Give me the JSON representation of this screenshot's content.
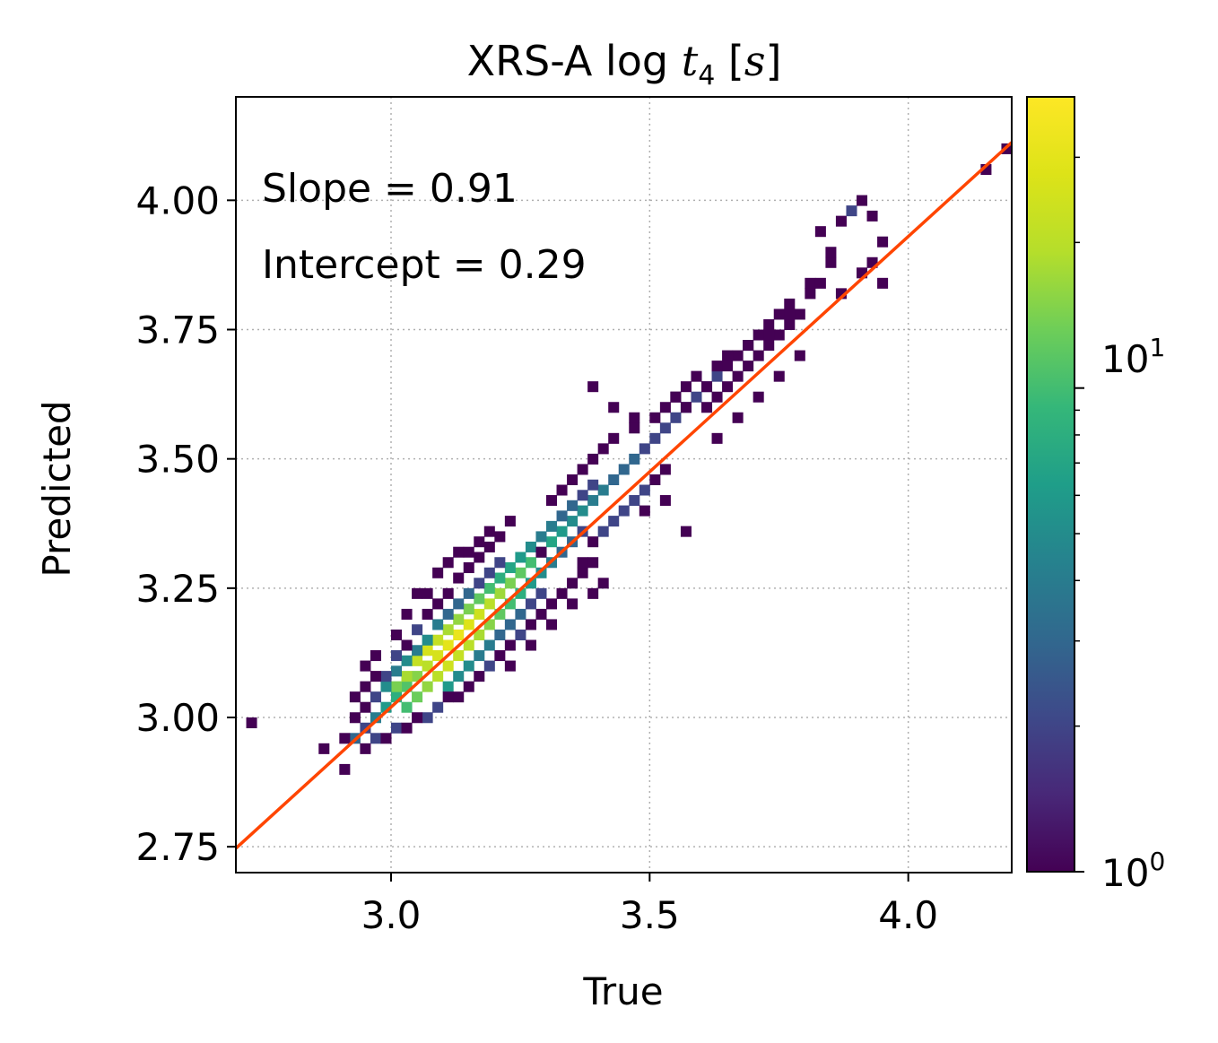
{
  "chart_data": {
    "type": "heatmap",
    "title": {
      "prefix": "XRS-A log ",
      "var": "t",
      "sub": "4",
      "unit_open": " [",
      "unit": "s",
      "unit_close": "]"
    },
    "xlabel": "True",
    "ylabel": "Predicted",
    "xlim": [
      2.7,
      4.2
    ],
    "ylim": [
      2.7,
      4.2
    ],
    "xticks": [
      3.0,
      3.5,
      4.0
    ],
    "xtick_labels": [
      "3.0",
      "3.5",
      "4.0"
    ],
    "yticks": [
      2.75,
      3.0,
      3.25,
      3.5,
      3.75,
      4.0
    ],
    "ytick_labels": [
      "2.75",
      "3.00",
      "3.25",
      "3.50",
      "3.75",
      "4.00"
    ],
    "grid": true,
    "annotations": [
      "Slope = 0.91",
      "Intercept = 0.29"
    ],
    "fit_line": {
      "slope": 0.91,
      "intercept": 0.29,
      "color": "#ff4500"
    },
    "colorbar": {
      "scale": "log",
      "colormap": "viridis",
      "range": [
        1,
        40
      ],
      "tick_labels": [
        {
          "base": "10",
          "exp": "0",
          "value": 1
        },
        {
          "base": "10",
          "exp": "1",
          "value": 10
        }
      ]
    },
    "bin_width": 0.02,
    "cells": [
      [
        2.72,
        2.98,
        1
      ],
      [
        2.86,
        2.93,
        1
      ],
      [
        2.9,
        2.89,
        1
      ],
      [
        2.92,
        2.95,
        3
      ],
      [
        2.94,
        2.97,
        2
      ],
      [
        2.96,
        2.99,
        4
      ],
      [
        2.98,
        3.01,
        6
      ],
      [
        3.0,
        3.03,
        8
      ],
      [
        3.02,
        3.05,
        11
      ],
      [
        3.04,
        3.07,
        15
      ],
      [
        3.06,
        3.09,
        20
      ],
      [
        3.08,
        3.11,
        26
      ],
      [
        3.1,
        3.13,
        30
      ],
      [
        3.12,
        3.15,
        32
      ],
      [
        3.14,
        3.17,
        28
      ],
      [
        3.16,
        3.19,
        24
      ],
      [
        3.18,
        3.21,
        20
      ],
      [
        3.2,
        3.23,
        17
      ],
      [
        3.22,
        3.25,
        14
      ],
      [
        3.24,
        3.27,
        12
      ],
      [
        3.26,
        3.29,
        10
      ],
      [
        3.28,
        3.31,
        8
      ],
      [
        3.3,
        3.33,
        7
      ],
      [
        3.32,
        3.35,
        6
      ],
      [
        3.34,
        3.37,
        5
      ],
      [
        3.36,
        3.39,
        5
      ],
      [
        3.38,
        3.41,
        4
      ],
      [
        3.4,
        3.43,
        4
      ],
      [
        3.42,
        3.45,
        3
      ],
      [
        3.44,
        3.47,
        3
      ],
      [
        3.46,
        3.49,
        3
      ],
      [
        3.48,
        3.51,
        2
      ],
      [
        3.5,
        3.53,
        2
      ],
      [
        3.52,
        3.55,
        2
      ],
      [
        3.54,
        3.57,
        2
      ],
      [
        3.56,
        3.59,
        2
      ],
      [
        3.58,
        3.61,
        2
      ],
      [
        3.6,
        3.63,
        2
      ],
      [
        3.62,
        3.65,
        2
      ],
      [
        3.64,
        3.67,
        1
      ],
      [
        3.66,
        3.69,
        1
      ],
      [
        3.68,
        3.71,
        1
      ],
      [
        3.7,
        3.73,
        1
      ],
      [
        3.72,
        3.75,
        1
      ],
      [
        3.74,
        3.77,
        1
      ],
      [
        3.76,
        3.79,
        1
      ],
      [
        3.8,
        3.83,
        1
      ],
      [
        3.84,
        3.87,
        1
      ],
      [
        3.0,
        3.05,
        14
      ],
      [
        3.02,
        3.07,
        18
      ],
      [
        3.04,
        3.1,
        22
      ],
      [
        3.06,
        3.12,
        26
      ],
      [
        3.08,
        3.14,
        22
      ],
      [
        3.1,
        3.16,
        18
      ],
      [
        3.12,
        3.18,
        16
      ],
      [
        3.14,
        3.2,
        14
      ],
      [
        3.16,
        3.22,
        12
      ],
      [
        3.18,
        3.24,
        10
      ],
      [
        3.2,
        3.26,
        8
      ],
      [
        3.22,
        3.28,
        7
      ],
      [
        3.24,
        3.3,
        6
      ],
      [
        3.26,
        3.32,
        5
      ],
      [
        3.28,
        3.34,
        4
      ],
      [
        3.3,
        3.36,
        4
      ],
      [
        3.32,
        3.38,
        3
      ],
      [
        3.34,
        3.4,
        3
      ],
      [
        3.36,
        3.42,
        2
      ],
      [
        3.38,
        3.44,
        2
      ],
      [
        3.02,
        3.01,
        10
      ],
      [
        3.04,
        3.03,
        13
      ],
      [
        3.06,
        3.05,
        16
      ],
      [
        3.08,
        3.07,
        20
      ],
      [
        3.1,
        3.09,
        24
      ],
      [
        3.12,
        3.11,
        22
      ],
      [
        3.14,
        3.13,
        20
      ],
      [
        3.16,
        3.15,
        18
      ],
      [
        3.18,
        3.17,
        15
      ],
      [
        3.2,
        3.19,
        12
      ],
      [
        3.22,
        3.21,
        10
      ],
      [
        3.24,
        3.23,
        8
      ],
      [
        3.26,
        3.25,
        6
      ],
      [
        3.28,
        3.27,
        5
      ],
      [
        3.3,
        3.29,
        4
      ],
      [
        3.32,
        3.31,
        3
      ],
      [
        3.34,
        3.33,
        3
      ],
      [
        3.36,
        3.35,
        2
      ],
      [
        2.98,
        3.05,
        5
      ],
      [
        3.0,
        3.08,
        4
      ],
      [
        3.02,
        3.1,
        5
      ],
      [
        3.04,
        3.12,
        4
      ],
      [
        3.06,
        3.14,
        5
      ],
      [
        3.08,
        3.17,
        4
      ],
      [
        3.1,
        3.19,
        3
      ],
      [
        3.12,
        3.21,
        3
      ],
      [
        3.14,
        3.23,
        3
      ],
      [
        3.16,
        3.25,
        2
      ],
      [
        3.18,
        3.27,
        2
      ],
      [
        3.2,
        3.29,
        2
      ],
      [
        3.1,
        3.05,
        6
      ],
      [
        3.12,
        3.07,
        5
      ],
      [
        3.14,
        3.09,
        5
      ],
      [
        3.16,
        3.11,
        4
      ],
      [
        3.18,
        3.13,
        4
      ],
      [
        3.2,
        3.15,
        3
      ],
      [
        3.22,
        3.17,
        3
      ],
      [
        3.24,
        3.19,
        3
      ],
      [
        3.26,
        3.21,
        2
      ],
      [
        3.28,
        3.23,
        2
      ],
      [
        2.94,
        3.01,
        1
      ],
      [
        2.96,
        3.03,
        2
      ],
      [
        2.98,
        3.07,
        2
      ],
      [
        2.96,
        3.07,
        1
      ],
      [
        2.94,
        3.05,
        1
      ],
      [
        3.0,
        3.11,
        2
      ],
      [
        3.02,
        3.13,
        1
      ],
      [
        3.04,
        3.16,
        2
      ],
      [
        3.06,
        3.19,
        1
      ],
      [
        3.08,
        3.21,
        1
      ],
      [
        3.1,
        3.23,
        1
      ],
      [
        3.12,
        3.26,
        1
      ],
      [
        3.14,
        3.28,
        1
      ],
      [
        3.16,
        3.3,
        1
      ],
      [
        3.18,
        3.32,
        1
      ],
      [
        3.2,
        3.34,
        1
      ],
      [
        3.06,
        2.99,
        2
      ],
      [
        3.08,
        3.01,
        2
      ],
      [
        3.1,
        3.03,
        1
      ],
      [
        3.12,
        3.03,
        1
      ],
      [
        3.14,
        3.05,
        1
      ],
      [
        3.16,
        3.07,
        1
      ],
      [
        3.18,
        3.09,
        2
      ],
      [
        3.2,
        3.11,
        1
      ],
      [
        3.22,
        3.13,
        1
      ],
      [
        3.24,
        3.15,
        2
      ],
      [
        3.26,
        3.17,
        1
      ],
      [
        3.28,
        3.19,
        1
      ],
      [
        3.3,
        3.21,
        1
      ],
      [
        3.32,
        3.23,
        1
      ],
      [
        3.34,
        3.25,
        1
      ],
      [
        3.36,
        3.27,
        1
      ],
      [
        3.38,
        3.29,
        1
      ],
      [
        3.0,
        2.97,
        2
      ],
      [
        3.02,
        2.97,
        1
      ],
      [
        2.96,
        2.95,
        2
      ],
      [
        2.94,
        2.93,
        1
      ],
      [
        2.98,
        2.95,
        1
      ],
      [
        3.04,
        2.99,
        1
      ],
      [
        2.9,
        2.95,
        1
      ],
      [
        2.92,
        2.99,
        1
      ],
      [
        2.92,
        3.03,
        1
      ],
      [
        2.94,
        3.09,
        1
      ],
      [
        2.96,
        3.11,
        1
      ],
      [
        3.0,
        3.15,
        1
      ],
      [
        3.02,
        3.19,
        1
      ],
      [
        3.04,
        3.23,
        1
      ],
      [
        3.06,
        3.23,
        1
      ],
      [
        3.08,
        3.27,
        1
      ],
      [
        3.1,
        3.29,
        1
      ],
      [
        3.12,
        3.31,
        1
      ],
      [
        3.14,
        3.31,
        1
      ],
      [
        3.16,
        3.33,
        1
      ],
      [
        3.18,
        3.35,
        1
      ],
      [
        3.22,
        3.37,
        1
      ],
      [
        3.28,
        3.31,
        1
      ],
      [
        3.22,
        3.09,
        1
      ],
      [
        3.26,
        3.13,
        1
      ],
      [
        3.3,
        3.17,
        1
      ],
      [
        3.34,
        3.21,
        1
      ],
      [
        3.38,
        3.23,
        1
      ],
      [
        3.4,
        3.25,
        1
      ],
      [
        3.36,
        3.29,
        1
      ],
      [
        3.38,
        3.33,
        1
      ],
      [
        3.4,
        3.35,
        2
      ],
      [
        3.42,
        3.37,
        2
      ],
      [
        3.44,
        3.39,
        2
      ],
      [
        3.46,
        3.41,
        2
      ],
      [
        3.48,
        3.43,
        2
      ],
      [
        3.5,
        3.45,
        1
      ],
      [
        3.52,
        3.47,
        1
      ],
      [
        3.48,
        3.39,
        1
      ],
      [
        3.52,
        3.41,
        1
      ],
      [
        3.56,
        3.35,
        1
      ],
      [
        3.3,
        3.41,
        1
      ],
      [
        3.32,
        3.43,
        1
      ],
      [
        3.34,
        3.45,
        1
      ],
      [
        3.36,
        3.47,
        1
      ],
      [
        3.38,
        3.49,
        1
      ],
      [
        3.4,
        3.51,
        1
      ],
      [
        3.42,
        3.53,
        1
      ],
      [
        3.46,
        3.55,
        1
      ],
      [
        3.5,
        3.57,
        1
      ],
      [
        3.52,
        3.59,
        1
      ],
      [
        3.54,
        3.61,
        1
      ],
      [
        3.56,
        3.63,
        1
      ],
      [
        3.6,
        3.59,
        1
      ],
      [
        3.62,
        3.61,
        1
      ],
      [
        3.64,
        3.63,
        1
      ],
      [
        3.66,
        3.65,
        1
      ],
      [
        3.68,
        3.67,
        1
      ],
      [
        3.7,
        3.69,
        1
      ],
      [
        3.72,
        3.71,
        1
      ],
      [
        3.74,
        3.73,
        1
      ],
      [
        3.76,
        3.75,
        1
      ],
      [
        3.78,
        3.77,
        1
      ],
      [
        3.8,
        3.81,
        1
      ],
      [
        3.82,
        3.83,
        1
      ],
      [
        3.62,
        3.53,
        1
      ],
      [
        3.66,
        3.57,
        1
      ],
      [
        3.7,
        3.61,
        1
      ],
      [
        3.74,
        3.65,
        1
      ],
      [
        3.78,
        3.69,
        1
      ],
      [
        3.6,
        3.63,
        1
      ],
      [
        3.58,
        3.65,
        1
      ],
      [
        3.62,
        3.67,
        1
      ],
      [
        3.64,
        3.69,
        1
      ],
      [
        3.68,
        3.71,
        1
      ],
      [
        3.72,
        3.73,
        1
      ],
      [
        3.76,
        3.77,
        1
      ],
      [
        3.38,
        3.63,
        1
      ],
      [
        3.42,
        3.59,
        1
      ],
      [
        3.46,
        3.57,
        1
      ],
      [
        3.54,
        3.61,
        1
      ],
      [
        3.56,
        3.59,
        1
      ],
      [
        3.84,
        3.89,
        1
      ],
      [
        3.82,
        3.93,
        1
      ],
      [
        3.86,
        3.95,
        1
      ],
      [
        3.88,
        3.97,
        2
      ],
      [
        3.9,
        3.99,
        1
      ],
      [
        3.92,
        3.96,
        1
      ],
      [
        3.94,
        3.91,
        1
      ],
      [
        3.92,
        3.87,
        1
      ],
      [
        3.9,
        3.85,
        1
      ],
      [
        3.94,
        3.83,
        1
      ],
      [
        3.86,
        3.81,
        1
      ],
      [
        4.14,
        4.05,
        1
      ],
      [
        4.18,
        4.09,
        1
      ]
    ]
  }
}
